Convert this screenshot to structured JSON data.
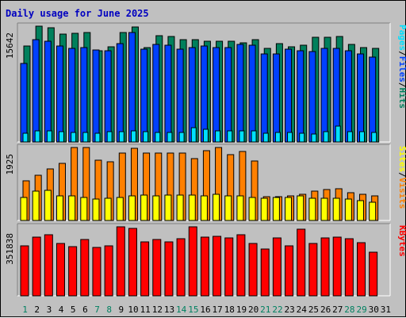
{
  "chart_data": [
    {
      "type": "bar",
      "title": "Daily usage for June 2025",
      "categories": [
        "1",
        "2",
        "3",
        "4",
        "5",
        "6",
        "7",
        "8",
        "9",
        "10",
        "11",
        "12",
        "13",
        "14",
        "15",
        "16",
        "17",
        "18",
        "19",
        "20",
        "21",
        "22",
        "23",
        "24",
        "25",
        "26",
        "27",
        "28",
        "29",
        "30",
        "31"
      ],
      "weekend_days": [
        "1",
        "7",
        "8",
        "14",
        "15",
        "21",
        "22",
        "28",
        "29"
      ],
      "ytick_label": "15642",
      "ymax": 15642,
      "legend": [
        "Pages",
        "/",
        "Files",
        "/",
        "Hits"
      ],
      "series": [
        {
          "name": "Hits",
          "color": "#00805c",
          "values": [
            13000,
            15642,
            15400,
            14600,
            14700,
            14800,
            12300,
            12900,
            14800,
            15500,
            12700,
            14400,
            14200,
            13800,
            13800,
            13600,
            13600,
            13600,
            13400,
            13800,
            12600,
            13300,
            12900,
            13100,
            14100,
            14100,
            14300,
            13200,
            12700,
            12600,
            null
          ]
        },
        {
          "name": "Files",
          "color": "#0040ff",
          "values": [
            10600,
            13800,
            13600,
            13000,
            12600,
            12700,
            12400,
            12300,
            13300,
            14800,
            12500,
            13200,
            13100,
            12500,
            12800,
            13000,
            12700,
            12700,
            13200,
            13100,
            11900,
            11900,
            12500,
            12300,
            12200,
            12600,
            12600,
            12300,
            11900,
            11500,
            null
          ]
        },
        {
          "name": "Pages",
          "color": "#00e0ff",
          "values": [
            1200,
            1500,
            1500,
            1400,
            1300,
            1300,
            1200,
            1400,
            1400,
            1500,
            1400,
            1300,
            1300,
            1300,
            1900,
            1700,
            1500,
            1500,
            1500,
            1500,
            1200,
            1300,
            1300,
            1200,
            1100,
            1400,
            2100,
            1400,
            1400,
            1300,
            null
          ]
        }
      ]
    },
    {
      "type": "bar",
      "categories": [
        "1",
        "2",
        "3",
        "4",
        "5",
        "6",
        "7",
        "8",
        "9",
        "10",
        "11",
        "12",
        "13",
        "14",
        "15",
        "16",
        "17",
        "18",
        "19",
        "20",
        "21",
        "22",
        "23",
        "24",
        "25",
        "26",
        "27",
        "28",
        "29",
        "30",
        "31"
      ],
      "ytick_label": "1925",
      "ymax": 1925,
      "legend": [
        "Sites",
        "/",
        "Visits"
      ],
      "series": [
        {
          "name": "Visits",
          "color": "#ff8000",
          "values": [
            1050,
            1200,
            1350,
            1500,
            1925,
            1925,
            1600,
            1550,
            1780,
            1900,
            1770,
            1780,
            1780,
            1780,
            1630,
            1850,
            1925,
            1740,
            1830,
            1560,
            620,
            620,
            650,
            700,
            780,
            810,
            830,
            740,
            700,
            640,
            null
          ]
        },
        {
          "name": "Sites",
          "color": "#ffff00",
          "values": [
            600,
            770,
            800,
            650,
            650,
            600,
            560,
            580,
            610,
            650,
            660,
            640,
            660,
            670,
            680,
            640,
            690,
            640,
            640,
            600,
            580,
            600,
            600,
            640,
            590,
            590,
            590,
            560,
            520,
            480,
            null
          ]
        }
      ]
    },
    {
      "type": "bar",
      "categories": [
        "1",
        "2",
        "3",
        "4",
        "5",
        "6",
        "7",
        "8",
        "9",
        "10",
        "11",
        "12",
        "13",
        "14",
        "15",
        "16",
        "17",
        "18",
        "19",
        "20",
        "21",
        "22",
        "23",
        "24",
        "25",
        "26",
        "27",
        "28",
        "29",
        "30",
        "31"
      ],
      "ytick_label": "351838",
      "ymax": 351838,
      "legend": [
        "KBytes"
      ],
      "series": [
        {
          "name": "KBytes",
          "color": "#ff0000",
          "values": [
            253000,
            300000,
            310000,
            265000,
            251000,
            289000,
            248000,
            255000,
            351838,
            345000,
            275000,
            286000,
            274000,
            290000,
            351838,
            300000,
            305000,
            297000,
            310000,
            268000,
            240000,
            294000,
            256000,
            340000,
            265000,
            295000,
            298000,
            290000,
            270000,
            222000,
            null
          ]
        }
      ]
    }
  ]
}
